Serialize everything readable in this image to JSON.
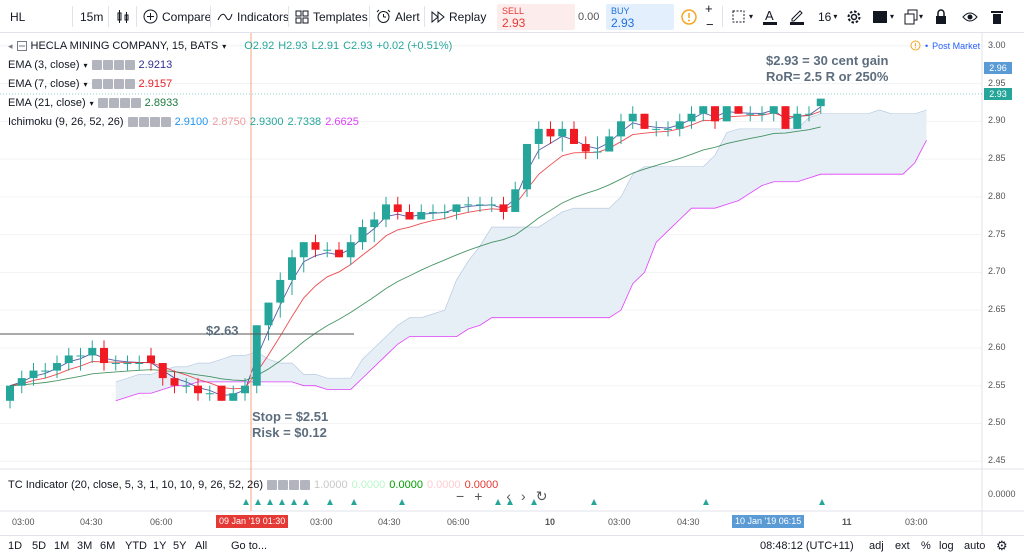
{
  "toolbar": {
    "symbol": "HL",
    "interval": "15m",
    "compare": "Compare",
    "indicators": "Indicators",
    "templates": "Templates",
    "alert": "Alert",
    "replay": "Replay",
    "sell_label": "SELL",
    "sell_price": "2.93",
    "spread": "0.00",
    "buy_label": "BUY",
    "buy_price": "2.93",
    "font_size": "16"
  },
  "legend": {
    "main_title": "HECLA MINING COMPANY, 15, BATS",
    "ohlc": {
      "o": "O2.92",
      "h": "H2.93",
      "l": "L2.91",
      "c": "C2.93",
      "chg": "+0.02 (+0.51%)"
    },
    "ema3": {
      "label": "EMA (3, close)",
      "value": "2.9213"
    },
    "ema7": {
      "label": "EMA (7, close)",
      "value": "2.9157"
    },
    "ema21": {
      "label": "EMA (21, close)",
      "value": "2.8933"
    },
    "ichimoku": {
      "label": "Ichimoku (9, 26, 52, 26)",
      "v1": "2.9100",
      "v2": "2.8750",
      "v3": "2.9300",
      "v4": "2.7338",
      "v5": "2.6625"
    },
    "post_market": "Post Market"
  },
  "annotations": {
    "gain_line1": "$2.93 = 30 cent gain",
    "gain_line2": "RoR= 2.5 R or 250%",
    "entry": "$2.63",
    "stop": "Stop = $2.51",
    "risk": "Risk = $0.12"
  },
  "price_axis": [
    "3.00",
    "2.95",
    "2.90",
    "2.85",
    "2.80",
    "2.75",
    "2.70",
    "2.65",
    "2.60",
    "2.55",
    "2.50",
    "2.45"
  ],
  "price_tags": {
    "upper": "2.96",
    "current": "2.93"
  },
  "indicator_pane": {
    "label": "TC Indicator (20, close, 5, 3, 1, 10, 10, 9, 26, 52, 26)",
    "v1": "1.0000",
    "v2": "0.0000",
    "v3": "0.0000",
    "v4": "0.0000",
    "v5": "0.0000",
    "axis": "0.0000"
  },
  "time_axis": [
    "03:00",
    "04:30",
    "06:00",
    "03:00",
    "04:30",
    "06:00",
    "10",
    "03:00",
    "04:30",
    "11",
    "03:00"
  ],
  "time_tags": {
    "left": "09 Jan '19  01:30",
    "right": "10 Jan '19  06:15"
  },
  "bottom_bar": {
    "ranges": [
      "1D",
      "5D",
      "1M",
      "3M",
      "6M",
      "YTD",
      "1Y",
      "5Y",
      "All"
    ],
    "goto": "Go to...",
    "clock": "08:48:12 (UTC+11)",
    "adj": "adj",
    "ext": "ext",
    "pct": "%",
    "log": "log",
    "auto": "auto"
  },
  "colors": {
    "up": "#26a69a",
    "down": "#ef1a22",
    "ema3": "#2e3192",
    "ema7": "#e91e24",
    "ema21": "#1b7a3e",
    "cloud": "#e6eef6"
  },
  "chart_data": {
    "type": "candlestick",
    "ylim": [
      2.43,
      3.01
    ],
    "candles": [
      [
        2.53,
        2.55,
        2.52,
        2.55
      ],
      [
        2.55,
        2.57,
        2.54,
        2.56
      ],
      [
        2.56,
        2.58,
        2.55,
        2.57
      ],
      [
        2.57,
        2.58,
        2.56,
        2.57
      ],
      [
        2.57,
        2.59,
        2.56,
        2.58
      ],
      [
        2.58,
        2.6,
        2.57,
        2.59
      ],
      [
        2.59,
        2.6,
        2.57,
        2.59
      ],
      [
        2.59,
        2.61,
        2.58,
        2.6
      ],
      [
        2.6,
        2.61,
        2.57,
        2.58
      ],
      [
        2.58,
        2.59,
        2.57,
        2.58
      ],
      [
        2.58,
        2.59,
        2.57,
        2.58
      ],
      [
        2.58,
        2.59,
        2.57,
        2.58
      ],
      [
        2.59,
        2.6,
        2.57,
        2.58
      ],
      [
        2.58,
        2.58,
        2.55,
        2.56
      ],
      [
        2.56,
        2.57,
        2.54,
        2.55
      ],
      [
        2.55,
        2.56,
        2.54,
        2.55
      ],
      [
        2.55,
        2.56,
        2.53,
        2.54
      ],
      [
        2.54,
        2.55,
        2.53,
        2.54
      ],
      [
        2.55,
        2.55,
        2.53,
        2.53
      ],
      [
        2.53,
        2.55,
        2.53,
        2.54
      ],
      [
        2.54,
        2.56,
        2.53,
        2.55
      ],
      [
        2.55,
        2.63,
        2.54,
        2.63
      ],
      [
        2.63,
        2.66,
        2.61,
        2.66
      ],
      [
        2.66,
        2.7,
        2.64,
        2.69
      ],
      [
        2.69,
        2.73,
        2.67,
        2.72
      ],
      [
        2.72,
        2.74,
        2.7,
        2.74
      ],
      [
        2.74,
        2.75,
        2.72,
        2.73
      ],
      [
        2.73,
        2.74,
        2.72,
        2.73
      ],
      [
        2.73,
        2.74,
        2.72,
        2.72
      ],
      [
        2.72,
        2.75,
        2.71,
        2.74
      ],
      [
        2.74,
        2.77,
        2.73,
        2.76
      ],
      [
        2.76,
        2.78,
        2.74,
        2.77
      ],
      [
        2.77,
        2.8,
        2.76,
        2.79
      ],
      [
        2.79,
        2.8,
        2.77,
        2.78
      ],
      [
        2.78,
        2.79,
        2.77,
        2.77
      ],
      [
        2.77,
        2.79,
        2.77,
        2.78
      ],
      [
        2.78,
        2.79,
        2.77,
        2.78
      ],
      [
        2.78,
        2.79,
        2.77,
        2.78
      ],
      [
        2.78,
        2.79,
        2.77,
        2.79
      ],
      [
        2.79,
        2.8,
        2.78,
        2.79
      ],
      [
        2.79,
        2.8,
        2.78,
        2.79
      ],
      [
        2.79,
        2.8,
        2.78,
        2.79
      ],
      [
        2.79,
        2.8,
        2.77,
        2.78
      ],
      [
        2.78,
        2.82,
        2.78,
        2.81
      ],
      [
        2.81,
        2.87,
        2.8,
        2.87
      ],
      [
        2.87,
        2.9,
        2.85,
        2.89
      ],
      [
        2.89,
        2.9,
        2.87,
        2.88
      ],
      [
        2.88,
        2.9,
        2.86,
        2.89
      ],
      [
        2.89,
        2.9,
        2.87,
        2.87
      ],
      [
        2.87,
        2.88,
        2.85,
        2.86
      ],
      [
        2.86,
        2.88,
        2.85,
        2.86
      ],
      [
        2.86,
        2.89,
        2.86,
        2.88
      ],
      [
        2.88,
        2.91,
        2.87,
        2.9
      ],
      [
        2.9,
        2.92,
        2.89,
        2.91
      ],
      [
        2.91,
        2.91,
        2.89,
        2.89
      ],
      [
        2.89,
        2.9,
        2.88,
        2.89
      ],
      [
        2.89,
        2.9,
        2.88,
        2.89
      ],
      [
        2.89,
        2.91,
        2.88,
        2.9
      ],
      [
        2.9,
        2.92,
        2.89,
        2.91
      ],
      [
        2.91,
        2.92,
        2.9,
        2.92
      ],
      [
        2.92,
        2.92,
        2.89,
        2.9
      ],
      [
        2.9,
        2.92,
        2.9,
        2.92
      ],
      [
        2.92,
        2.92,
        2.91,
        2.91
      ],
      [
        2.91,
        2.92,
        2.9,
        2.91
      ],
      [
        2.91,
        2.92,
        2.9,
        2.91
      ],
      [
        2.91,
        2.92,
        2.9,
        2.92
      ],
      [
        2.92,
        2.92,
        2.89,
        2.89
      ],
      [
        2.89,
        2.92,
        2.89,
        2.91
      ],
      [
        2.91,
        2.92,
        2.9,
        2.91
      ],
      [
        2.92,
        2.93,
        2.91,
        2.93
      ]
    ]
  }
}
